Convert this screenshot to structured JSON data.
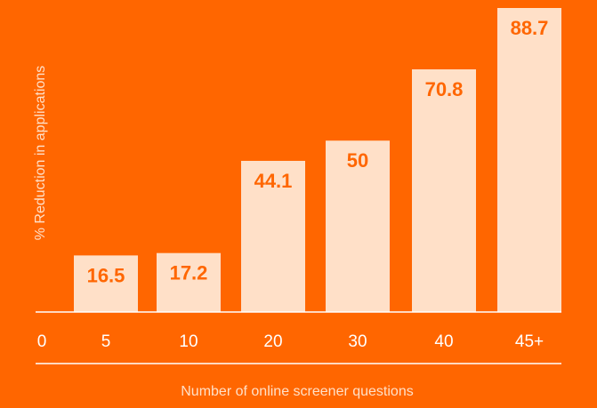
{
  "colors": {
    "background": "#FF6600",
    "bar": "#FFE0C8",
    "value_text": "#FF6600",
    "axis_text": "#FFFFFF"
  },
  "chart_data": {
    "type": "bar",
    "origin_label": "0",
    "categories": [
      "5",
      "10",
      "20",
      "30",
      "40",
      "45+"
    ],
    "values": [
      16.5,
      17.2,
      44.1,
      50,
      70.8,
      88.7
    ],
    "value_labels": [
      "16.5",
      "17.2",
      "44.1",
      "50",
      "70.8",
      "88.7"
    ],
    "xlabel": "Number of online screener questions",
    "ylabel": "% Reduction in applications",
    "ylim": [
      0,
      88.7
    ],
    "grid": false,
    "legend": "none"
  }
}
